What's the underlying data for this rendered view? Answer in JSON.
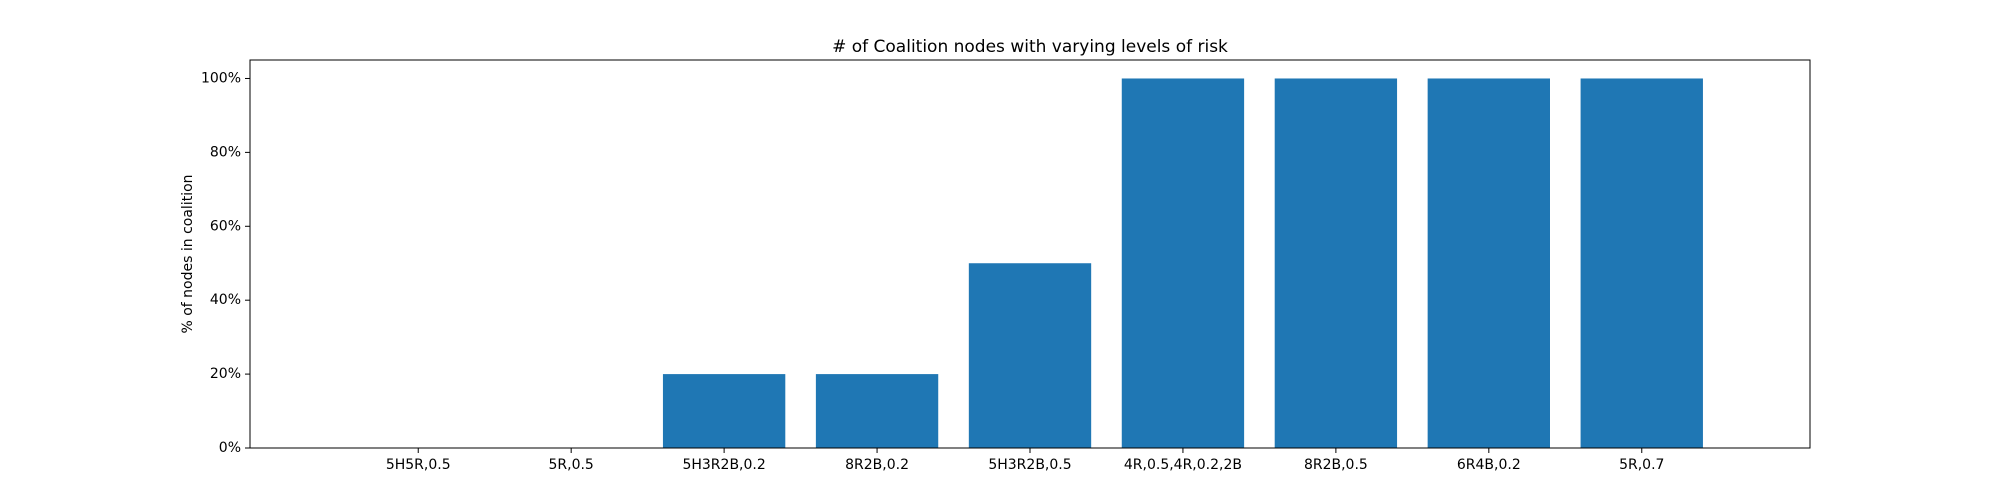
{
  "chart_data": {
    "type": "bar",
    "title": "# of Coalition nodes with varying levels of risk",
    "xlabel": "",
    "ylabel": "% of nodes in coalition",
    "categories": [
      "5H5R,0.5",
      "5R,0.5",
      "5H3R2B,0.2",
      "8R2B,0.2",
      "5H3R2B,0.5",
      "4R,0.5,4R,0.2,2B",
      "8R2B,0.5",
      "6R4B,0.2",
      "5R,0.7"
    ],
    "values": [
      0,
      0,
      20,
      20,
      50,
      100,
      100,
      100,
      100
    ],
    "ylim": [
      0,
      105
    ],
    "yticks": [
      0,
      20,
      40,
      60,
      80,
      100
    ],
    "ytick_labels": [
      "0%",
      "20%",
      "40%",
      "60%",
      "80%",
      "100%"
    ],
    "grid": false,
    "bar_color": "#1f77b4"
  }
}
